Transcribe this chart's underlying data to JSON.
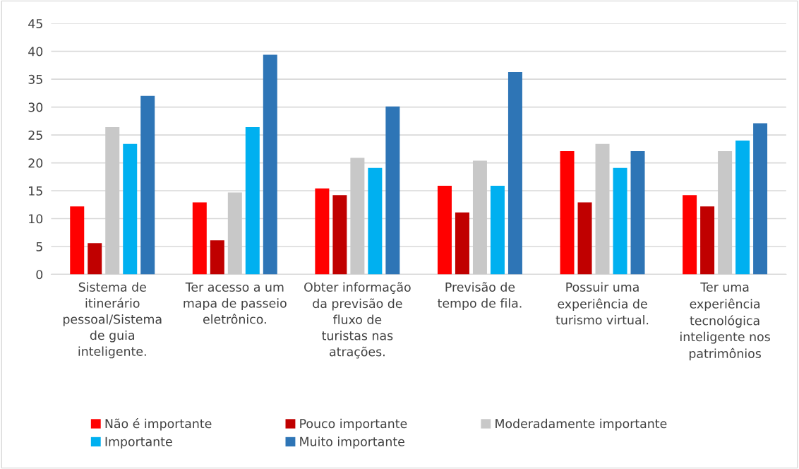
{
  "chart_data": {
    "type": "bar",
    "categories": [
      "Sistema de itinerário pessoal/Sistema de guia inteligente.",
      "Ter acesso a um mapa de passeio eletrônico.",
      "Obter informação da previsão de fluxo de turistas nas atrações.",
      "Previsão de tempo de fila.",
      "Possuir uma experiência de turismo virtual.",
      "Ter uma experiência tecnológica inteligente nos patrimônios"
    ],
    "series": [
      {
        "name": "Não é importante",
        "color": "#ff0000",
        "values": [
          12.2,
          12.9,
          15.4,
          15.9,
          22.1,
          14.2
        ]
      },
      {
        "name": "Pouco importante",
        "color": "#c00000",
        "values": [
          5.6,
          6.1,
          14.2,
          11.1,
          12.9,
          12.2
        ]
      },
      {
        "name": "Moderadamente importante",
        "color": "#c8c8c8",
        "values": [
          26.4,
          14.7,
          20.9,
          20.4,
          23.4,
          22.1
        ]
      },
      {
        "name": "Importante",
        "color": "#00b0f0",
        "values": [
          23.4,
          26.4,
          19.1,
          15.9,
          19.1,
          24.0
        ]
      },
      {
        "name": "Muito importante",
        "color": "#2e75b6",
        "values": [
          32.0,
          39.4,
          30.1,
          36.3,
          22.1,
          27.1
        ]
      }
    ],
    "ylim": [
      0,
      45
    ],
    "yticks": [
      0,
      5,
      10,
      15,
      20,
      25,
      30,
      35,
      40,
      45
    ],
    "grid": "y",
    "legend": "bottom"
  }
}
